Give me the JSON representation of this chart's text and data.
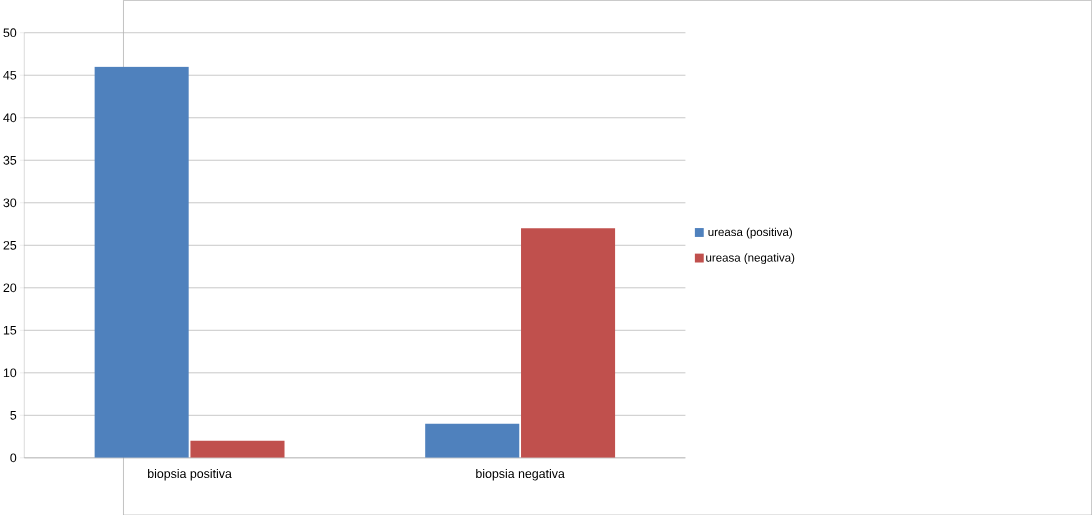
{
  "chart_data": {
    "type": "bar",
    "categories": [
      "biopsia positiva",
      "biopsia negativa"
    ],
    "series": [
      {
        "name": "ureasa (positiva)",
        "color": "#4f81bd",
        "values": [
          46,
          4
        ]
      },
      {
        "name": "ureasa (negativa)",
        "color": "#c0504d",
        "values": [
          2,
          27
        ]
      }
    ],
    "ylim": [
      0,
      50
    ],
    "yticks": [
      0,
      5,
      10,
      15,
      20,
      25,
      30,
      35,
      40,
      45,
      50
    ],
    "grid": "y",
    "legend": "right"
  }
}
